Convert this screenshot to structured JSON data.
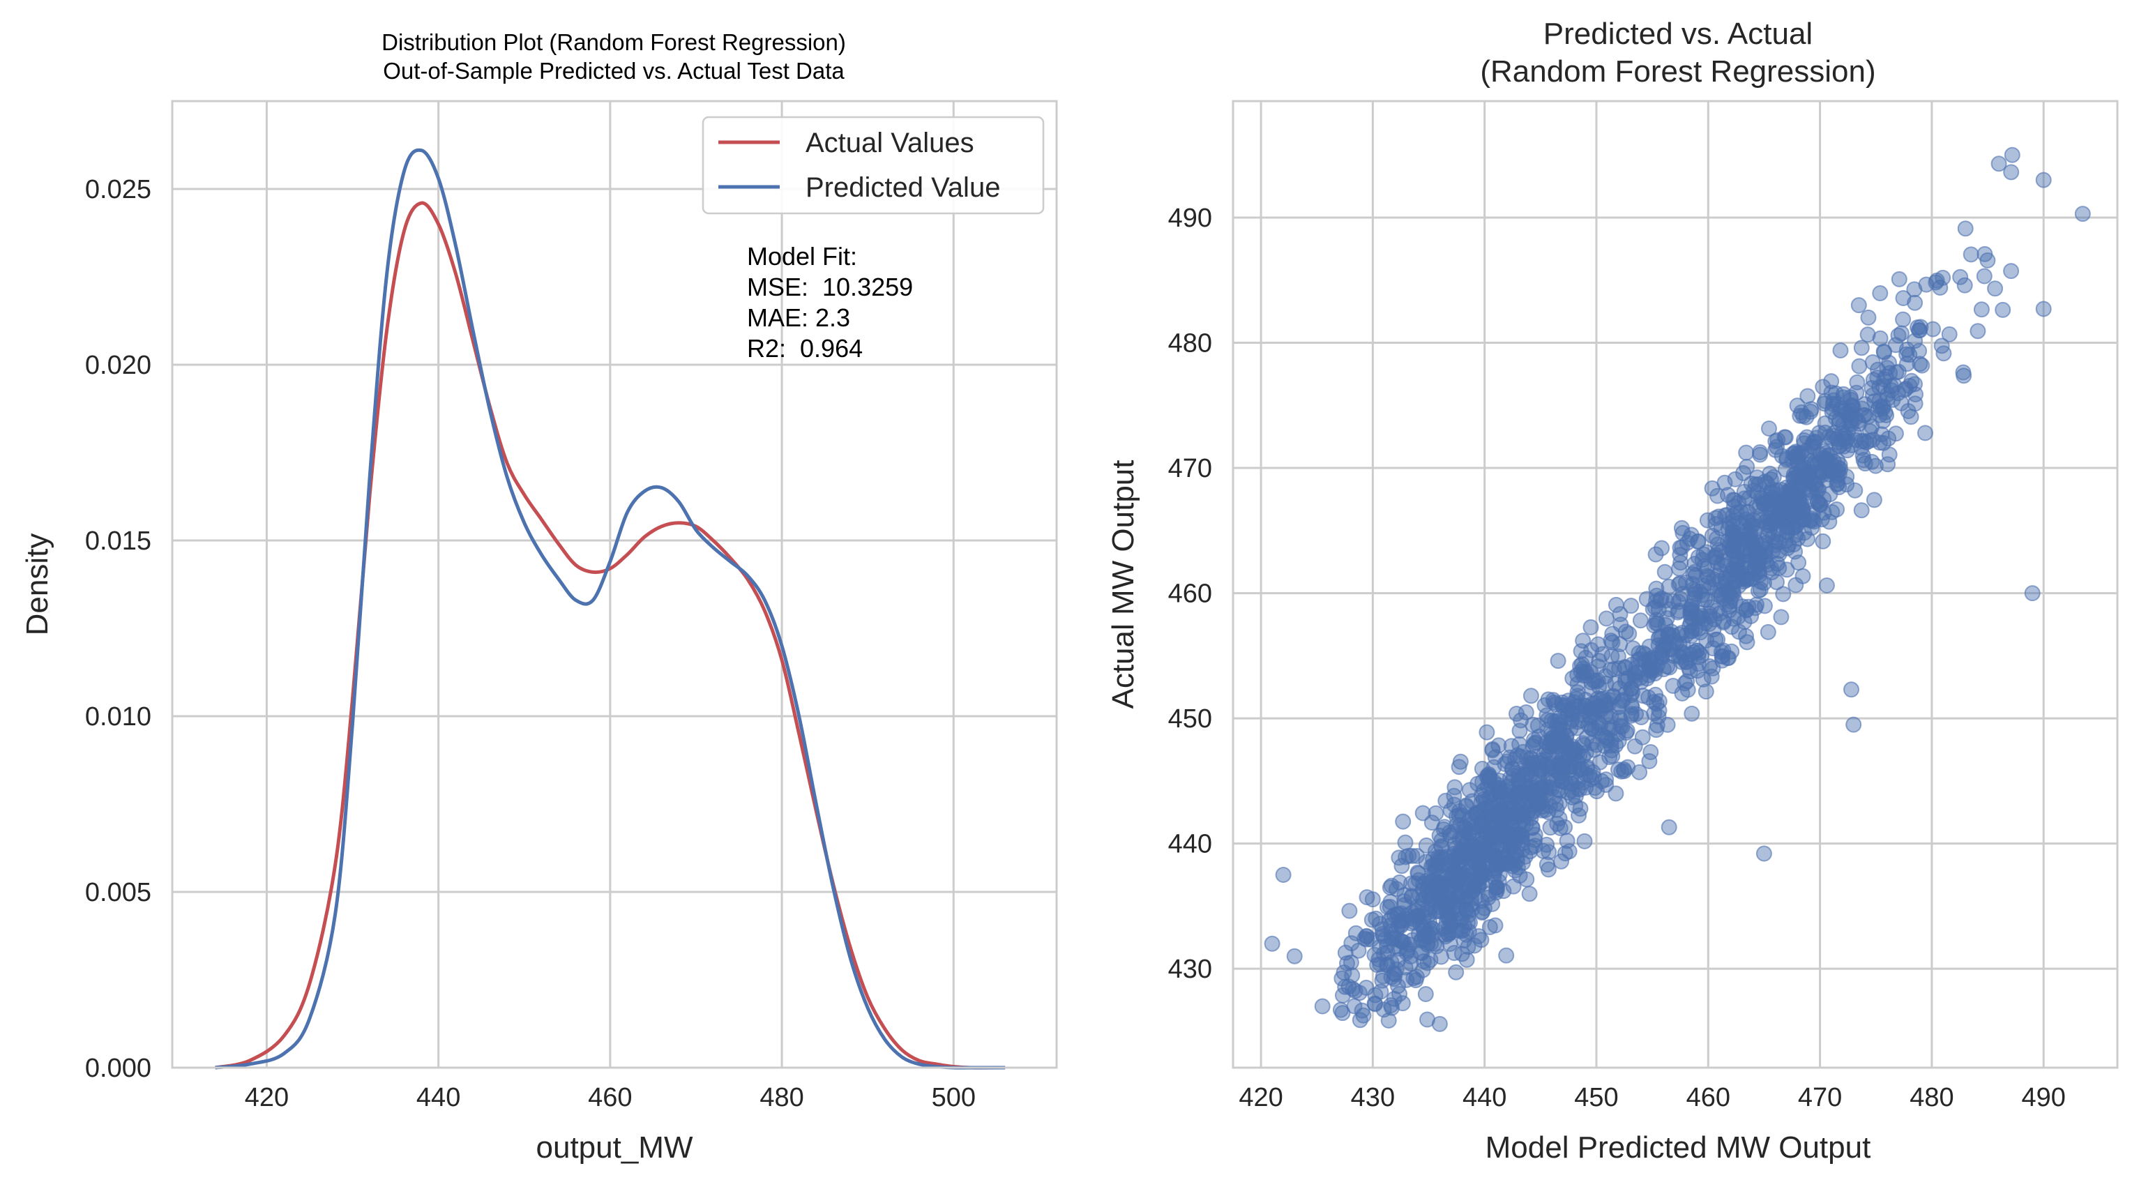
{
  "chart_data": [
    {
      "type": "line",
      "title": "Distribution Plot (Random Forest Regression)\nOut-of-Sample Predicted vs. Actual Test Data",
      "title_lines": [
        "Distribution Plot (Random Forest Regression)",
        "Out-of-Sample Predicted vs. Actual Test Data"
      ],
      "xlabel": "output_MW",
      "ylabel": "Density",
      "xlim": [
        409,
        512
      ],
      "ylim": [
        0,
        0.0275
      ],
      "xticks": [
        420,
        440,
        460,
        480,
        500
      ],
      "yticks": [
        0.0,
        0.005,
        0.01,
        0.015,
        0.02,
        0.025
      ],
      "ytick_labels": [
        "0.000",
        "0.005",
        "0.010",
        "0.015",
        "0.020",
        "0.025"
      ],
      "grid": true,
      "legend_position": "top-right",
      "annotation": [
        "Model Fit:",
        "MSE:  10.3259",
        "MAE: 2.3",
        "R2:  0.964"
      ],
      "series": [
        {
          "name": "Actual Values",
          "color": "#c44e52",
          "x": [
            414,
            418,
            422,
            425,
            428,
            430,
            432,
            434,
            436,
            438,
            440,
            442,
            444,
            446,
            448,
            450,
            452,
            454,
            456,
            458,
            460,
            462,
            464,
            466,
            468,
            470,
            472,
            474,
            476,
            478,
            480,
            482,
            484,
            486,
            488,
            490,
            492,
            494,
            496,
            498,
            500,
            502,
            506
          ],
          "y": [
            0.0,
            0.0002,
            0.0009,
            0.0024,
            0.0058,
            0.0105,
            0.0163,
            0.021,
            0.0238,
            0.0246,
            0.024,
            0.0226,
            0.0207,
            0.0188,
            0.0172,
            0.0163,
            0.0156,
            0.0149,
            0.0143,
            0.0141,
            0.0142,
            0.0146,
            0.0151,
            0.0154,
            0.0155,
            0.0154,
            0.015,
            0.0145,
            0.0139,
            0.013,
            0.0116,
            0.0095,
            0.0073,
            0.0052,
            0.0034,
            0.002,
            0.0011,
            0.0005,
            0.0002,
            0.0001,
            3e-05,
            0.0,
            0.0
          ]
        },
        {
          "name": "Predicted Value",
          "color": "#4c72b0",
          "x": [
            414,
            418,
            422,
            425,
            428,
            430,
            432,
            434,
            436,
            438,
            440,
            442,
            444,
            446,
            448,
            450,
            452,
            454,
            456,
            458,
            460,
            462,
            464,
            466,
            468,
            470,
            472,
            474,
            476,
            478,
            480,
            482,
            484,
            486,
            488,
            490,
            492,
            494,
            496,
            498,
            500,
            502,
            506
          ],
          "y": [
            0.0,
            0.0001,
            0.0004,
            0.0014,
            0.0044,
            0.0098,
            0.0168,
            0.0226,
            0.0255,
            0.0261,
            0.0253,
            0.0234,
            0.021,
            0.0187,
            0.0168,
            0.0155,
            0.0146,
            0.0139,
            0.0133,
            0.0133,
            0.0144,
            0.0158,
            0.0164,
            0.0165,
            0.0161,
            0.0153,
            0.0148,
            0.0144,
            0.014,
            0.0133,
            0.012,
            0.01,
            0.0075,
            0.0051,
            0.0031,
            0.0017,
            0.0008,
            0.0003,
            0.0001,
            3e-05,
            0.0,
            0.0,
            0.0
          ]
        }
      ]
    },
    {
      "type": "scatter",
      "title": "Predicted vs. Actual\n(Random Forest Regression)",
      "title_lines": [
        "Predicted vs. Actual",
        "(Random Forest Regression)"
      ],
      "xlabel": "Model Predicted MW Output",
      "ylabel": "Actual MW Output",
      "xlim": [
        417.5,
        496.6
      ],
      "ylim": [
        422.1,
        499.3
      ],
      "xticks": [
        420,
        430,
        440,
        450,
        460,
        470,
        480,
        490
      ],
      "yticks": [
        430,
        440,
        450,
        460,
        470,
        480,
        490
      ],
      "grid": true,
      "marker_color": "#4c72b0",
      "marker_alpha": 0.45,
      "approx_point_count": 1900,
      "trend": {
        "slope": 1.0,
        "intercept": 0.0,
        "spread_sd": 3.2,
        "x_range": [
          421,
          494
        ]
      },
      "outliers": [
        [
          421,
          432
        ],
        [
          422,
          437.5
        ],
        [
          423,
          431
        ],
        [
          425.5,
          427
        ],
        [
          489,
          460
        ],
        [
          473,
          449.5
        ],
        [
          465,
          439.2
        ],
        [
          456.5,
          441.3
        ],
        [
          472.8,
          452.3
        ],
        [
          493.5,
          490.3
        ],
        [
          490,
          482.7
        ],
        [
          487.2,
          495
        ],
        [
          486,
          494.3
        ],
        [
          490,
          493
        ]
      ]
    }
  ]
}
